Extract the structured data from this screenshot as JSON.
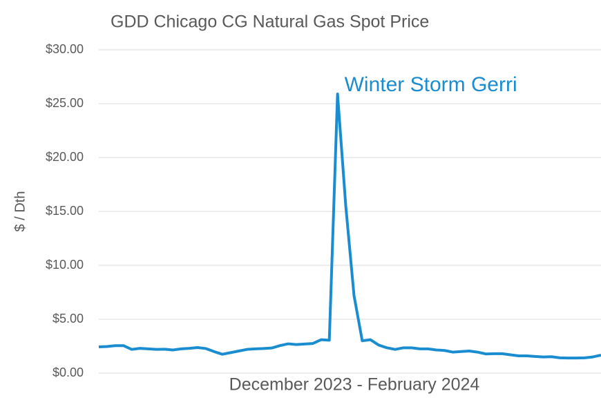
{
  "chart_data": {
    "type": "line",
    "title": "GDD Chicago CG Natural Gas Spot Price",
    "x_label": "December 2023 - February 2024",
    "y_label": "$ / Dth",
    "annotation": "Winter Storm Gerri",
    "series": [
      {
        "name": "GDD Chicago CG",
        "color": "#1a8cd0",
        "values": [
          2.44,
          2.47,
          2.55,
          2.55,
          2.2,
          2.3,
          2.25,
          2.2,
          2.22,
          2.15,
          2.25,
          2.3,
          2.37,
          2.28,
          2.0,
          1.75,
          1.9,
          2.05,
          2.2,
          2.25,
          2.28,
          2.33,
          2.55,
          2.72,
          2.65,
          2.7,
          2.75,
          3.1,
          3.05,
          25.9,
          15.5,
          7.2,
          3.0,
          3.1,
          2.6,
          2.35,
          2.2,
          2.35,
          2.35,
          2.25,
          2.25,
          2.15,
          2.1,
          1.95,
          2.0,
          2.05,
          1.95,
          1.78,
          1.8,
          1.8,
          1.7,
          1.6,
          1.6,
          1.55,
          1.5,
          1.52,
          1.42,
          1.4,
          1.4,
          1.42,
          1.5,
          1.67
        ]
      }
    ],
    "ylim": [
      0,
      30
    ],
    "yticks": [
      {
        "value": 0,
        "label": "$0.00"
      },
      {
        "value": 5,
        "label": "$5.00"
      },
      {
        "value": 10,
        "label": "$10.00"
      },
      {
        "value": 15,
        "label": "$15.00"
      },
      {
        "value": 20,
        "label": "$20.00"
      },
      {
        "value": 25,
        "label": "$25.00"
      },
      {
        "value": 30,
        "label": "$30.00"
      }
    ],
    "grid": true
  }
}
